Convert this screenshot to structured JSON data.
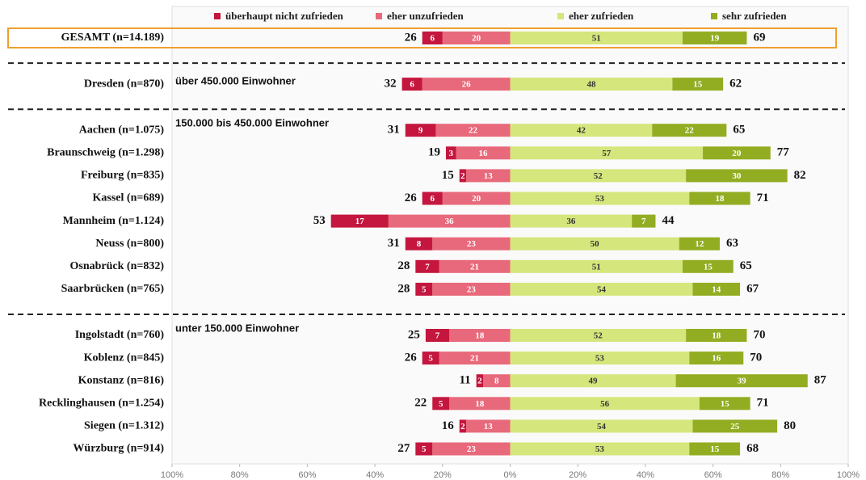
{
  "chart_data": {
    "type": "diverging-bar",
    "categories": [
      "GESAMT (n=14.189)",
      "Dresden (n=870)",
      "Aachen (n=1.075)",
      "Braunschweig (n=1.298)",
      "Freiburg (n=835)",
      "Kassel (n=689)",
      "Mannheim (n=1.124)",
      "Neuss (n=800)",
      "Osnabrück (n=832)",
      "Saarbrücken (n=765)",
      "Ingolstadt (n=760)",
      "Koblenz (n=845)",
      "Konstanz (n=816)",
      "Recklinghausen (n=1.254)",
      "Siegen (n=1.312)",
      "Würzburg (n=914)"
    ],
    "sections": [
      {
        "label": "über 450.000 Einwohner",
        "first": 1
      },
      {
        "label": "150.000 bis 450.000 Einwohner",
        "first": 2
      },
      {
        "label": "unter 150.000 Einwohner",
        "first": 10
      }
    ],
    "highlight": 0,
    "series": [
      {
        "name": "überhaupt nicht zufrieden",
        "color": "#c4163e",
        "side": "left",
        "values": [
          6,
          6,
          9,
          3,
          2,
          6,
          17,
          8,
          7,
          5,
          7,
          5,
          2,
          5,
          2,
          5
        ]
      },
      {
        "name": "eher unzufrieden",
        "color": "#e8697b",
        "side": "left",
        "values": [
          20,
          26,
          22,
          16,
          13,
          20,
          36,
          23,
          21,
          23,
          18,
          21,
          8,
          18,
          13,
          23
        ]
      },
      {
        "name": "eher  zufrieden",
        "color": "#d5e67c",
        "side": "right",
        "values": [
          51,
          48,
          42,
          57,
          52,
          53,
          36,
          50,
          51,
          54,
          52,
          53,
          49,
          56,
          54,
          53
        ]
      },
      {
        "name": "sehr zufrieden",
        "color": "#93ad22",
        "side": "right",
        "values": [
          19,
          15,
          22,
          20,
          30,
          18,
          7,
          12,
          15,
          14,
          18,
          16,
          39,
          15,
          25,
          15
        ]
      }
    ],
    "totals_left": [
      26,
      32,
      31,
      19,
      15,
      26,
      53,
      31,
      28,
      28,
      25,
      26,
      11,
      22,
      16,
      27
    ],
    "totals_right": [
      69,
      62,
      65,
      77,
      82,
      71,
      44,
      63,
      65,
      67,
      70,
      70,
      87,
      71,
      80,
      68
    ],
    "xlim": [
      -100,
      100
    ],
    "xticks": [
      {
        "value": -100,
        "label": "100%"
      },
      {
        "value": -80,
        "label": "80%"
      },
      {
        "value": -60,
        "label": "60%"
      },
      {
        "value": -40,
        "label": "40%"
      },
      {
        "value": -20,
        "label": "20%"
      },
      {
        "value": 0,
        "label": "0%"
      },
      {
        "value": 20,
        "label": "20%"
      },
      {
        "value": 40,
        "label": "40%"
      },
      {
        "value": 60,
        "label": "60%"
      },
      {
        "value": 80,
        "label": "80%"
      },
      {
        "value": 100,
        "label": "100%"
      }
    ]
  }
}
